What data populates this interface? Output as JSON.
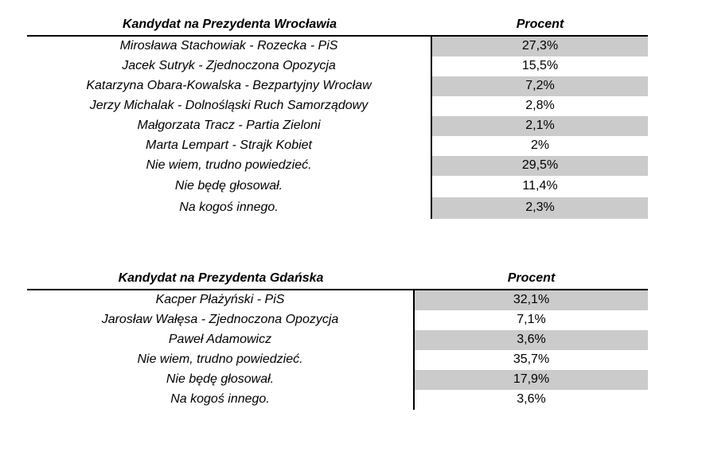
{
  "page": {
    "background_color": "#ffffff",
    "text_color": "#000000",
    "rule_color": "#000000",
    "shaded_cell_color": "#cbcbcb"
  },
  "tables": [
    {
      "candidate_header": "Kandydat na Prezydenta Wrocławia",
      "percent_header": "Procent",
      "rows": [
        {
          "candidate": "Mirosława Stachowiak - Rozecka - PiS",
          "percent": "27,3%"
        },
        {
          "candidate": "Jacek Sutryk - Zjednoczona Opozycja",
          "percent": "15,5%"
        },
        {
          "candidate": "Katarzyna Obara-Kowalska - Bezpartyjny Wrocław",
          "percent": "7,2%"
        },
        {
          "candidate": "Jerzy Michalak - Dolnośląski Ruch Samorządowy",
          "percent": "2,8%"
        },
        {
          "candidate": "Małgorzata Tracz - Partia Zieloni",
          "percent": "2,1%"
        },
        {
          "candidate": "Marta Lempart - Strajk Kobiet",
          "percent": "2%"
        },
        {
          "candidate": "Nie wiem, trudno powiedzieć.",
          "percent": "29,5%"
        },
        {
          "candidate": "Nie będę głosował.",
          "percent": "11,4%"
        },
        {
          "candidate": "Na kogoś innego.",
          "percent": "2,3%"
        }
      ]
    },
    {
      "candidate_header": "Kandydat na Prezydenta Gdańska",
      "percent_header": "Procent",
      "rows": [
        {
          "candidate": "Kacper Płażyński - PiS",
          "percent": "32,1%"
        },
        {
          "candidate": "Jarosław Wałęsa - Zjednoczona Opozycja",
          "percent": "7,1%"
        },
        {
          "candidate": "Paweł Adamowicz",
          "percent": "3,6%"
        },
        {
          "candidate": "Nie wiem, trudno powiedzieć.",
          "percent": "35,7%"
        },
        {
          "candidate": "Nie będę głosował.",
          "percent": "17,9%"
        },
        {
          "candidate": "Na kogoś innego.",
          "percent": "3,6%"
        }
      ]
    }
  ],
  "chart_data": [
    {
      "type": "table",
      "title": "Kandydat na Prezydenta Wrocławia",
      "columns": [
        "Kandydat na Prezydenta Wrocławia",
        "Procent"
      ],
      "categories": [
        "Mirosława Stachowiak - Rozecka - PiS",
        "Jacek Sutryk - Zjednoczona Opozycja",
        "Katarzyna Obara-Kowalska - Bezpartyjny Wrocław",
        "Jerzy Michalak - Dolnośląski Ruch Samorządowy",
        "Małgorzata Tracz - Partia Zieloni",
        "Marta Lempart - Strajk Kobiet",
        "Nie wiem, trudno powiedzieć.",
        "Nie będę głosował.",
        "Na kogoś innego."
      ],
      "values": [
        27.3,
        15.5,
        7.2,
        2.8,
        2.1,
        2.0,
        29.5,
        11.4,
        2.3
      ]
    },
    {
      "type": "table",
      "title": "Kandydat na Prezydenta Gdańska",
      "columns": [
        "Kandydat na Prezydenta Gdańska",
        "Procent"
      ],
      "categories": [
        "Kacper Płażyński - PiS",
        "Jarosław Wałęsa - Zjednoczona Opozycja",
        "Paweł Adamowicz",
        "Nie wiem, trudno powiedzieć.",
        "Nie będę głosował.",
        "Na kogoś innego."
      ],
      "values": [
        32.1,
        7.1,
        3.6,
        35.7,
        17.9,
        3.6
      ]
    }
  ]
}
